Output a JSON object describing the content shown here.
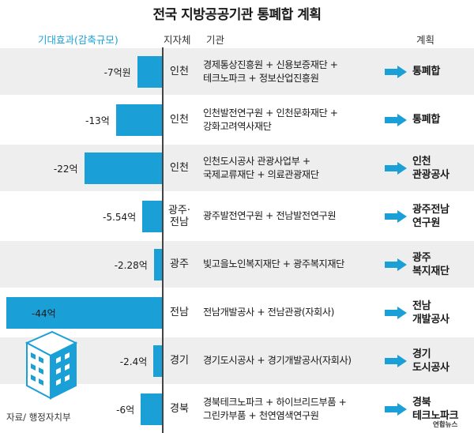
{
  "title": "전국 지방공공기관 통폐합 계획",
  "headers": {
    "effect": "기대효과(감축규모)",
    "region": "지자체",
    "org": "기관",
    "plan": "계획"
  },
  "chart_data": {
    "type": "bar",
    "orientation": "horizontal",
    "title": "전국 지방공공기관 통폐합 계획",
    "value_label": "기대효과(감축규모)",
    "unit": "억원",
    "categories": [
      "인천",
      "인천",
      "인천",
      "광주·전남",
      "광주",
      "전남",
      "경기",
      "경북"
    ],
    "values": [
      -7,
      -13,
      -22,
      -5.54,
      -2.28,
      -44,
      -2.4,
      -6
    ],
    "value_labels": [
      "-7억원",
      "-13억",
      "-22억",
      "-5.54억",
      "-2.28억",
      "-44억",
      "-2.4억",
      "-6억"
    ],
    "xlim": [
      -44,
      0
    ]
  },
  "rows": [
    {
      "region": [
        "인천"
      ],
      "org": [
        "경제통상진흥원 + 신용보증재단 +",
        "테크노파크 + 정보산업진흥원"
      ],
      "plan": [
        "통폐합"
      ],
      "shaded": true
    },
    {
      "region": [
        "인천"
      ],
      "org": [
        "인천발전연구원 + 인천문화재단 +",
        "강화고려역사재단"
      ],
      "plan": [
        "통폐합"
      ],
      "shaded": false
    },
    {
      "region": [
        "인천"
      ],
      "org": [
        "인천도시공사 관광사업부 +",
        "국제교류재단 + 의료관광재단"
      ],
      "plan": [
        "인천",
        "관광공사"
      ],
      "shaded": true
    },
    {
      "region": [
        "광주·",
        "전남"
      ],
      "org": [
        "광주발전연구원 + 전남발전연구원"
      ],
      "plan": [
        "광주전남",
        "연구원"
      ],
      "shaded": false
    },
    {
      "region": [
        "광주"
      ],
      "org": [
        "빛고을노인복지재단 + 광주복지재단"
      ],
      "plan": [
        "광주",
        "복지재단"
      ],
      "shaded": true
    },
    {
      "region": [
        "전남"
      ],
      "org": [
        "전남개발공사 + 전남관광(자회사)"
      ],
      "plan": [
        "전남",
        "개발공사"
      ],
      "shaded": false
    },
    {
      "region": [
        "경기"
      ],
      "org": [
        "경기도시공사 + 경기개발공사(자회사)"
      ],
      "plan": [
        "경기",
        "도시공사"
      ],
      "shaded": true
    },
    {
      "region": [
        "경북"
      ],
      "org": [
        "경북테크노파크 + 하이브리드부품 +",
        "그린카부품 + 천연염색연구원"
      ],
      "plan": [
        "경북",
        "테크노파크"
      ],
      "shaded": false
    }
  ],
  "colors": {
    "bar": "#1aa0d6",
    "band": "#eeeeee",
    "arrow": "#1aa0d6"
  },
  "icons": {
    "building": "building-icon",
    "arrow": "right-arrow-icon"
  },
  "source": "자료/ 행정자치부",
  "logo": "연합뉴스"
}
